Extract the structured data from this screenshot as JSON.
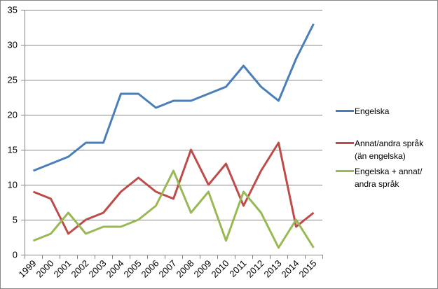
{
  "chart_data": {
    "type": "line",
    "title": "",
    "xlabel": "",
    "ylabel": "",
    "ylim": [
      0,
      35
    ],
    "yticks": [
      0,
      5,
      10,
      15,
      20,
      25,
      30,
      35
    ],
    "grid": true,
    "legend_position": "right",
    "categories": [
      "1999",
      "2000",
      "2001",
      "2002",
      "2003",
      "2004",
      "2005",
      "2006",
      "2007",
      "2008",
      "2009",
      "2010",
      "2011",
      "2012",
      "2013",
      "2014",
      "2015"
    ],
    "series": [
      {
        "name": "Engelska",
        "color": "#4A7EBB",
        "values": [
          12,
          13,
          14,
          16,
          16,
          23,
          23,
          21,
          22,
          22,
          23,
          24,
          27,
          24,
          22,
          28,
          33
        ]
      },
      {
        "name": "Annat/andra språk (än engelska)",
        "color": "#BE4B48",
        "values": [
          9,
          8,
          3,
          5,
          6,
          9,
          11,
          9,
          8,
          15,
          10,
          13,
          7,
          12,
          16,
          4,
          6
        ]
      },
      {
        "name": "Engelska + annat/ andra språk",
        "color": "#98B954",
        "values": [
          2,
          3,
          6,
          3,
          4,
          4,
          5,
          7,
          12,
          6,
          9,
          2,
          9,
          6,
          1,
          5,
          1
        ]
      }
    ]
  },
  "legend": {
    "items": [
      {
        "label": "Engelska",
        "color": "#4A7EBB"
      },
      {
        "label": "Annat/andra språk (än engelska)",
        "color": "#BE4B48"
      },
      {
        "label": "Engelska + annat/ andra språk",
        "color": "#98B954"
      }
    ]
  },
  "colors": {
    "gridline": "#868686",
    "axis": "#868686",
    "border": "#868686"
  }
}
